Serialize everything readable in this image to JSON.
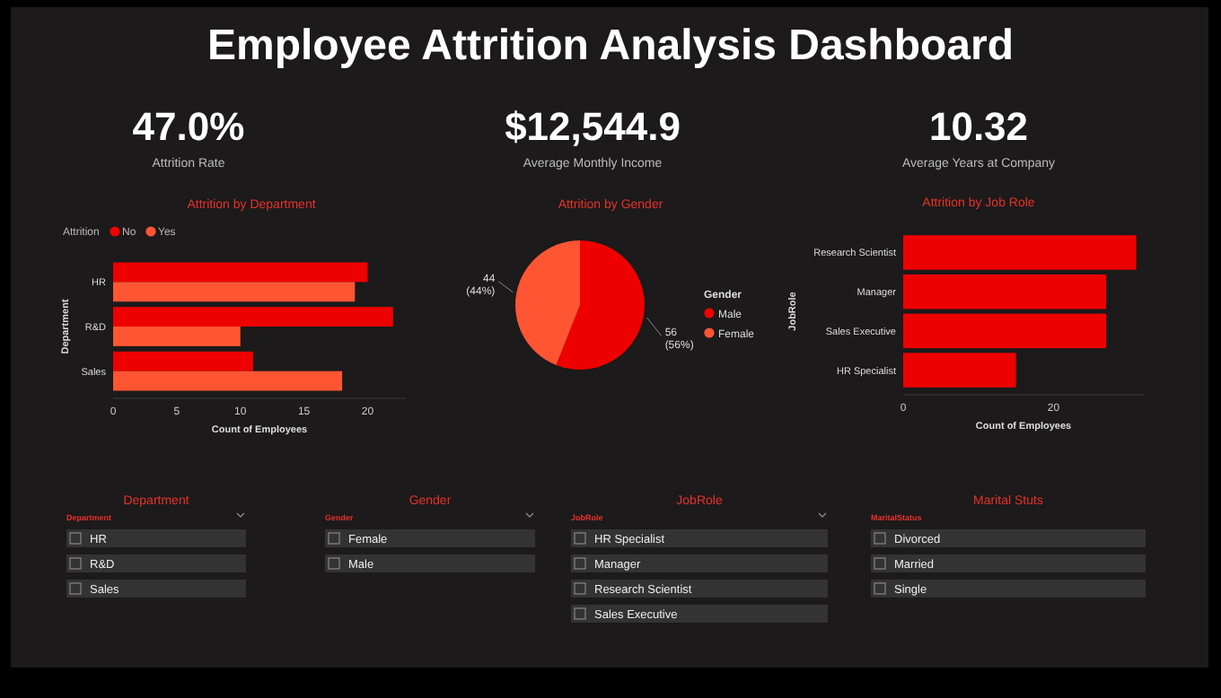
{
  "chart_data": [
    {
      "type": "other",
      "title": "Employee Attrition Analysis Dashboard",
      "annotations": [
        "47.0%",
        "Attrition Rate",
        "$12,544.9",
        "Average Monthly Income",
        "10.32",
        "Average Years at Company"
      ]
    },
    {
      "type": "bar",
      "orientation": "horizontal",
      "title": "Attrition by Department",
      "xlabel": "Count of Employees",
      "ylabel": "Department",
      "legend_title": "Attrition",
      "legend": "top left",
      "categories": [
        "HR",
        "R&D",
        "Sales"
      ],
      "xlim": [
        0,
        23
      ],
      "xticks": [
        0,
        5,
        10,
        15,
        20
      ],
      "series": [
        {
          "name": "No",
          "color": "#ee0000",
          "values": [
            20,
            22,
            11
          ]
        },
        {
          "name": "Yes",
          "color": "#ff5533",
          "values": [
            19,
            10,
            18
          ]
        }
      ]
    },
    {
      "type": "pie",
      "title": "Attrition by Gender",
      "legend_title": "Gender",
      "legend": "right",
      "categories": [
        "Male",
        "Female"
      ],
      "values": [
        56,
        44
      ],
      "colors": [
        "#ee0000",
        "#ff5533"
      ],
      "value_labels": [
        "56 (56%)",
        "44 (44%)"
      ]
    },
    {
      "type": "bar",
      "orientation": "horizontal",
      "title": "Attrition by Job Role",
      "xlabel": "Count of Employees",
      "ylabel": "JobRole",
      "categories": [
        "Research Scientist",
        "Manager",
        "Sales Executive",
        "HR Specialist"
      ],
      "xlim": [
        0,
        32
      ],
      "xticks": [
        0,
        20
      ],
      "values": [
        31,
        27,
        27,
        15
      ],
      "color": "#ee0000"
    },
    {
      "type": "other",
      "title": "Department",
      "subtitle": "Department",
      "annotations": [
        "HR",
        "R&D",
        "Sales"
      ]
    },
    {
      "type": "other",
      "title": "Gender",
      "subtitle": "Gender",
      "annotations": [
        "Female",
        "Male"
      ]
    },
    {
      "type": "other",
      "title": "JobRole",
      "subtitle": "JobRole",
      "annotations": [
        "HR Specialist",
        "Manager",
        "Research Scientist",
        "Sales Executive"
      ]
    },
    {
      "type": "other",
      "title": "Marital Stuts",
      "subtitle": "MaritalStatus",
      "annotations": [
        "Divorced",
        "Married",
        "Single"
      ]
    }
  ]
}
